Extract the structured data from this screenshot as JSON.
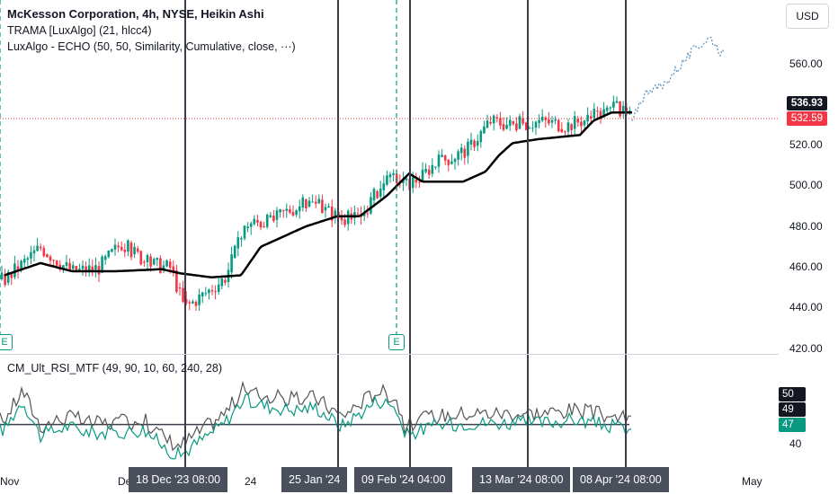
{
  "legend": {
    "symbol_line": "McKesson Corporation, 4h, NYSE, Heikin Ashi",
    "indicator_trama": "TRAMA [LuxAlgo] (21, hlcc4)",
    "indicator_echo": "LuxAlgo - ECHO (50, 50, Similarity, Cumulative, close, ···)",
    "rsi_line": "CM_Ult_RSI_MTF (49, 90, 10, 60, 240, 28)"
  },
  "currency_button": "USD",
  "price_axis": {
    "labels": [
      "560.00",
      "520.00",
      "500.00",
      "480.00",
      "460.00",
      "440.00",
      "420.00"
    ],
    "current_price": "536.93",
    "last_close": "532.59"
  },
  "rsi_axis": {
    "labels": [
      "50",
      "49",
      "47",
      "40"
    ]
  },
  "time_axis": {
    "labels": [
      "Nov",
      "Dec",
      "24",
      "May"
    ],
    "pills": [
      "18 Dec '23   08:00",
      "25 Jan '24",
      "09 Feb '24   04:00",
      "13 Mar '24   08:00",
      "08 Apr '24   08:00"
    ]
  },
  "earnings_badges": [
    "E",
    "E"
  ],
  "colors": {
    "up": "#089981",
    "down": "#f23645",
    "trama": "#000000",
    "rsi_main": "#089981",
    "rsi_secondary": "#555555",
    "vline": "#3a3f4b",
    "price_box_dark": "#131722",
    "price_box_red": "#f23645"
  },
  "chart_data": {
    "type": "candlestick",
    "price_range": [
      420,
      575
    ],
    "rsi_range": [
      35,
      62
    ],
    "trama_anchors": [
      [
        5,
        456
      ],
      [
        45,
        462
      ],
      [
        80,
        458
      ],
      [
        130,
        458
      ],
      [
        180,
        459
      ],
      [
        200,
        457
      ],
      [
        235,
        455
      ],
      [
        268,
        456
      ],
      [
        290,
        470
      ],
      [
        340,
        480
      ],
      [
        375,
        485
      ],
      [
        400,
        485
      ],
      [
        430,
        495
      ],
      [
        455,
        506
      ],
      [
        470,
        502
      ],
      [
        515,
        502
      ],
      [
        540,
        507
      ],
      [
        555,
        515
      ],
      [
        570,
        521
      ],
      [
        600,
        523
      ],
      [
        645,
        525
      ],
      [
        660,
        532
      ],
      [
        680,
        536
      ],
      [
        700,
        536
      ]
    ],
    "close_anchors": [
      [
        5,
        454
      ],
      [
        45,
        470
      ],
      [
        80,
        458
      ],
      [
        110,
        460
      ],
      [
        135,
        472
      ],
      [
        165,
        462
      ],
      [
        190,
        460
      ],
      [
        205,
        440
      ],
      [
        230,
        448
      ],
      [
        250,
        455
      ],
      [
        275,
        482
      ],
      [
        300,
        482
      ],
      [
        320,
        488
      ],
      [
        345,
        492
      ],
      [
        380,
        484
      ],
      [
        400,
        484
      ],
      [
        420,
        498
      ],
      [
        440,
        504
      ],
      [
        450,
        500
      ],
      [
        470,
        505
      ],
      [
        480,
        510
      ],
      [
        520,
        518
      ],
      [
        545,
        532
      ],
      [
        570,
        530
      ],
      [
        600,
        532
      ],
      [
        630,
        530
      ],
      [
        660,
        534
      ],
      [
        685,
        538
      ],
      [
        700,
        534
      ]
    ],
    "projection_anchors": [
      [
        703,
        530
      ],
      [
        710,
        540
      ],
      [
        722,
        548
      ],
      [
        735,
        548
      ],
      [
        748,
        555
      ],
      [
        762,
        562
      ],
      [
        775,
        568
      ],
      [
        790,
        573
      ],
      [
        805,
        564
      ]
    ],
    "rsi_anchors": [
      [
        5,
        46
      ],
      [
        25,
        55
      ],
      [
        45,
        44
      ],
      [
        75,
        47
      ],
      [
        100,
        45
      ],
      [
        130,
        45
      ],
      [
        160,
        46
      ],
      [
        185,
        40
      ],
      [
        200,
        38
      ],
      [
        230,
        44
      ],
      [
        250,
        48
      ],
      [
        270,
        55
      ],
      [
        300,
        53
      ],
      [
        330,
        52
      ],
      [
        350,
        53
      ],
      [
        380,
        47
      ],
      [
        400,
        51
      ],
      [
        420,
        55
      ],
      [
        440,
        53
      ],
      [
        450,
        44
      ],
      [
        480,
        47
      ],
      [
        520,
        48
      ],
      [
        560,
        48
      ],
      [
        600,
        48
      ],
      [
        640,
        49
      ],
      [
        680,
        47
      ],
      [
        700,
        46
      ]
    ],
    "rsi_reference": 47.5
  }
}
